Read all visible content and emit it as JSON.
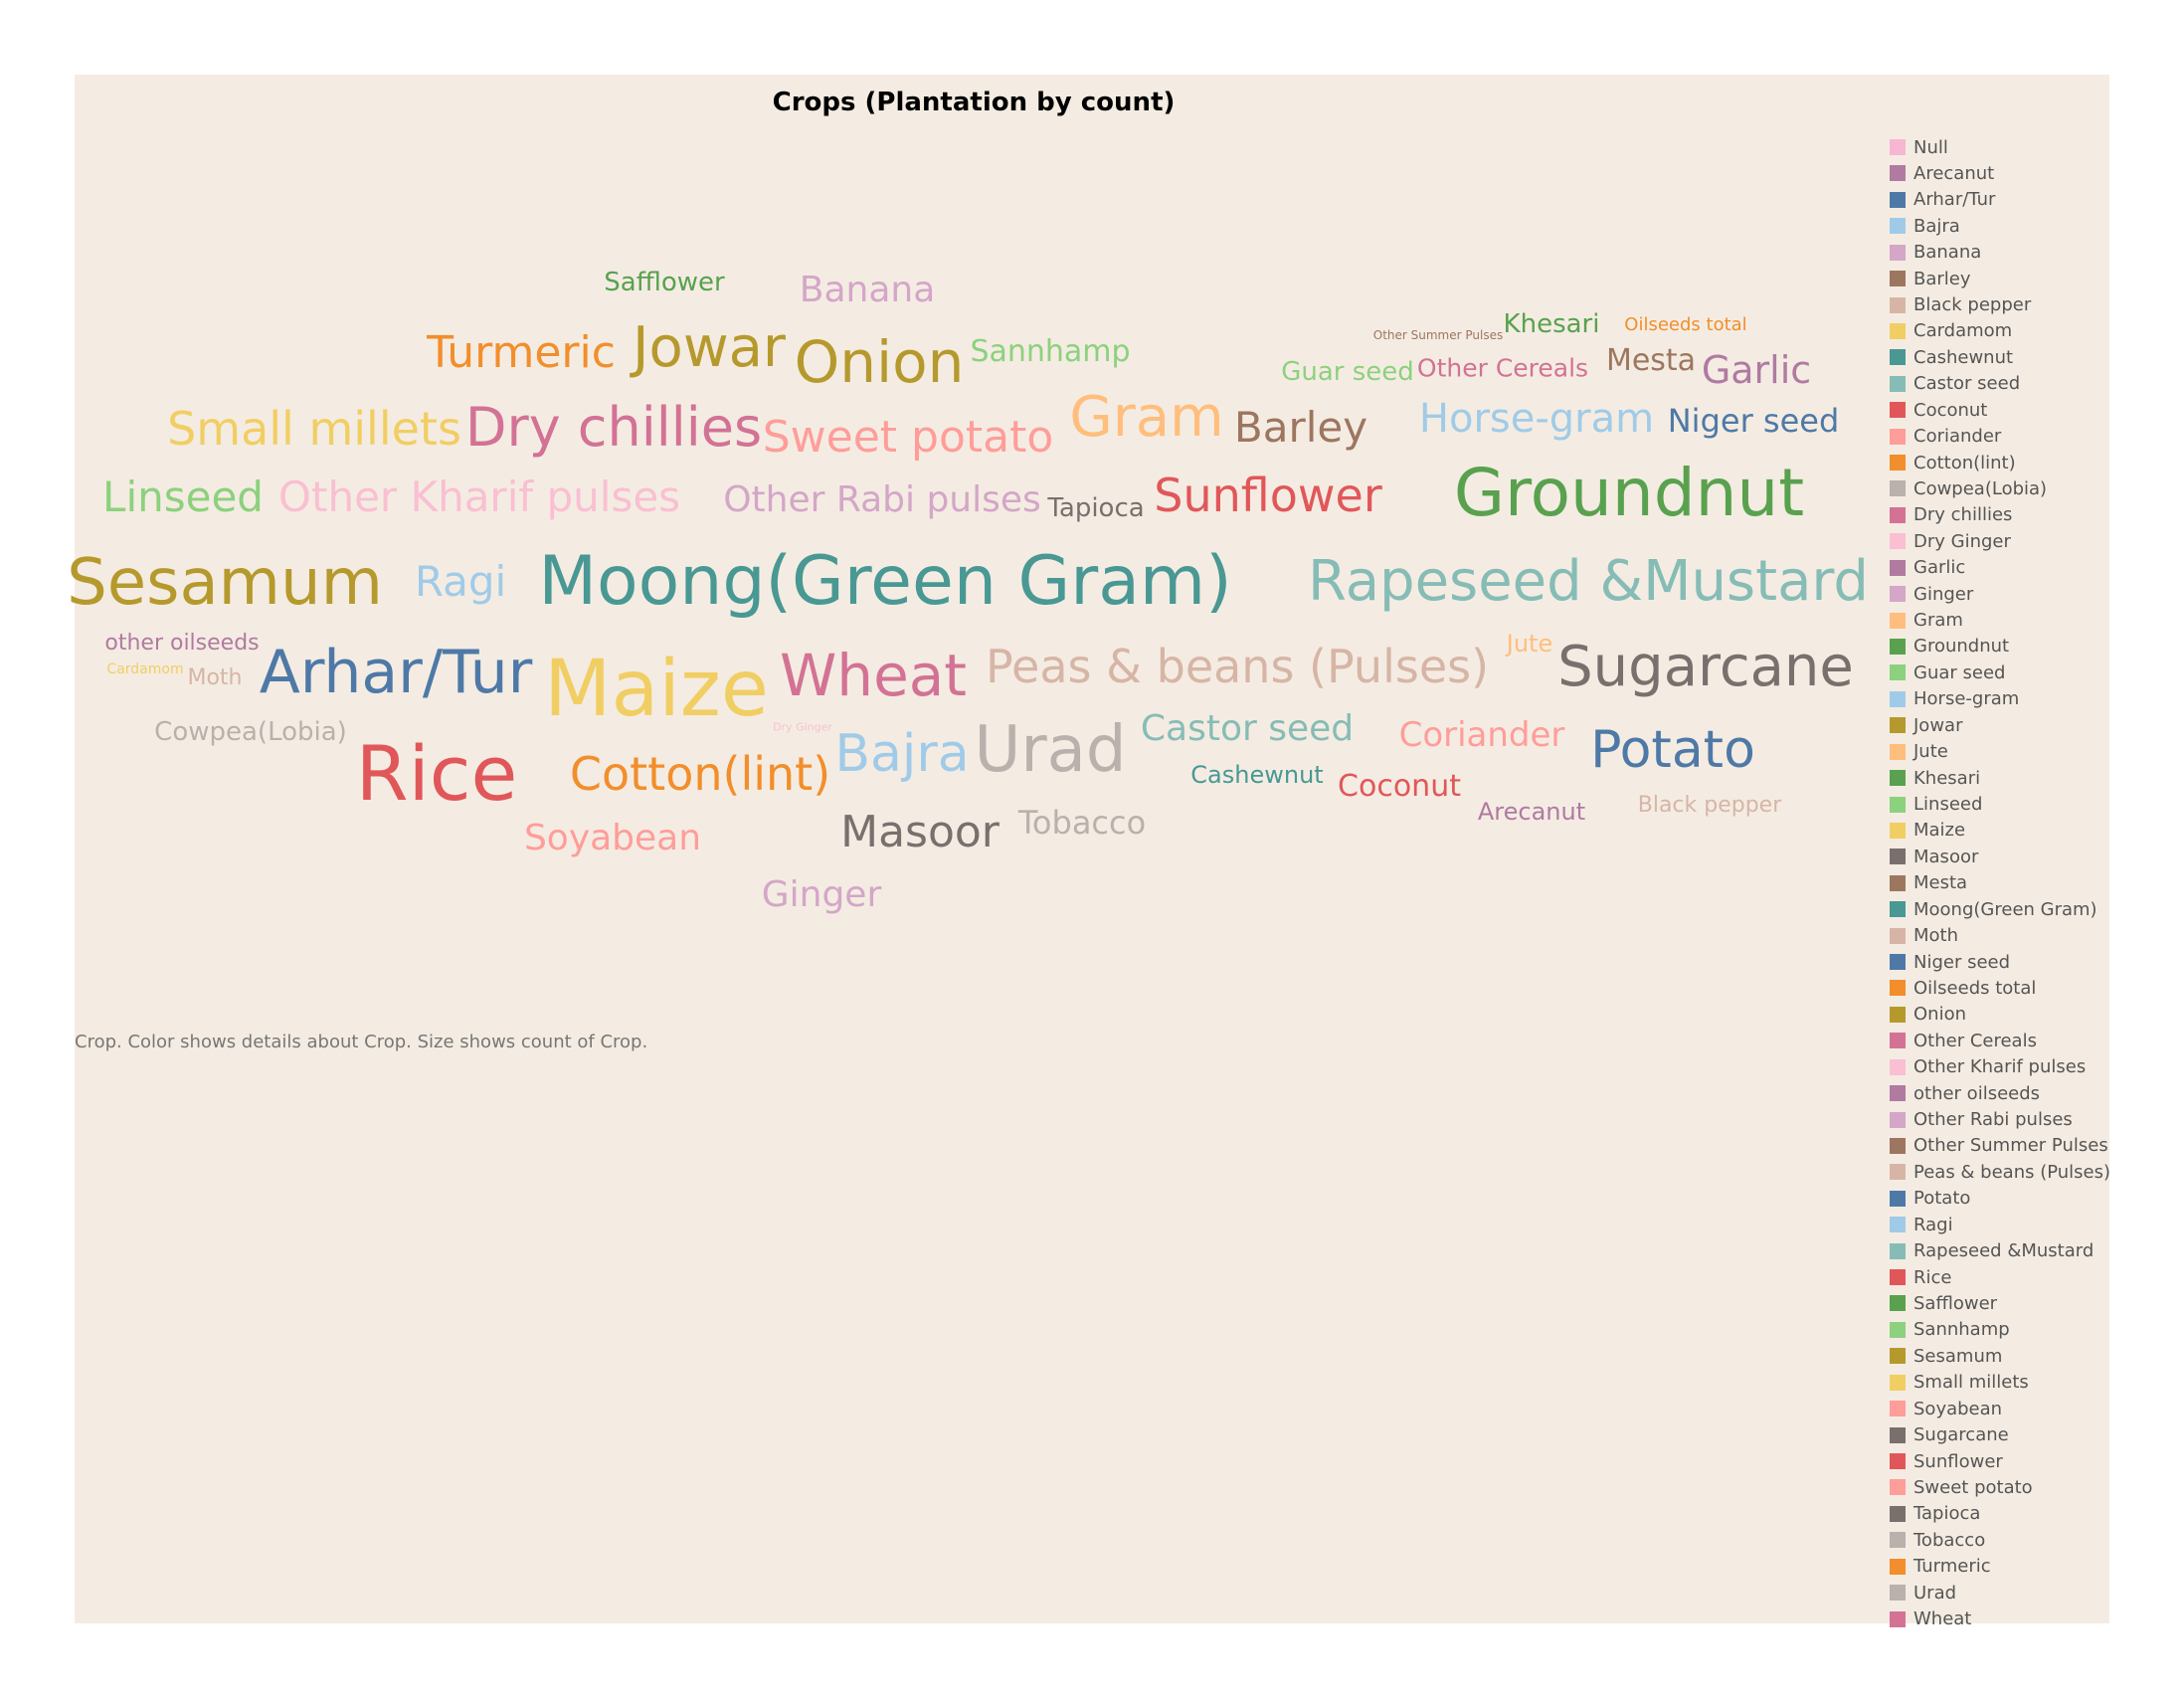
{
  "chart_data": {
    "type": "wordcloud",
    "title": "Crops (Plantation by count)",
    "caption": "Crop.  Color shows details about Crop.  Size shows count of Crop.",
    "legend_position": "right",
    "legend": [
      {
        "name": "Null",
        "color": "#f7b6d2"
      },
      {
        "name": "Arecanut",
        "color": "#b07aa1"
      },
      {
        "name": "Arhar/Tur",
        "color": "#4e79a7"
      },
      {
        "name": "Bajra",
        "color": "#a0cbe8"
      },
      {
        "name": "Banana",
        "color": "#d4a6c8"
      },
      {
        "name": "Barley",
        "color": "#9d7660"
      },
      {
        "name": "Black pepper",
        "color": "#d7b5a6"
      },
      {
        "name": "Cardamom",
        "color": "#f1ce63"
      },
      {
        "name": "Cashewnut",
        "color": "#499894"
      },
      {
        "name": "Castor seed",
        "color": "#86bcb6"
      },
      {
        "name": "Coconut",
        "color": "#e15759"
      },
      {
        "name": "Coriander",
        "color": "#ff9d9a"
      },
      {
        "name": "Cotton(lint)",
        "color": "#f28e2b"
      },
      {
        "name": "Cowpea(Lobia)",
        "color": "#bab0ac"
      },
      {
        "name": "Dry chillies",
        "color": "#d37295"
      },
      {
        "name": "Dry Ginger",
        "color": "#fabfd2"
      },
      {
        "name": "Garlic",
        "color": "#b07aa1"
      },
      {
        "name": "Ginger",
        "color": "#d4a6c8"
      },
      {
        "name": "Gram",
        "color": "#ffbe7d"
      },
      {
        "name": "Groundnut",
        "color": "#59a14f"
      },
      {
        "name": "Guar seed",
        "color": "#8cd17d"
      },
      {
        "name": "Horse-gram",
        "color": "#a0cbe8"
      },
      {
        "name": "Jowar",
        "color": "#b6992d"
      },
      {
        "name": "Jute",
        "color": "#ffbe7d"
      },
      {
        "name": "Khesari",
        "color": "#59a14f"
      },
      {
        "name": "Linseed",
        "color": "#8cd17d"
      },
      {
        "name": "Maize",
        "color": "#f1ce63"
      },
      {
        "name": "Masoor",
        "color": "#79706e"
      },
      {
        "name": "Mesta",
        "color": "#9d7660"
      },
      {
        "name": "Moong(Green Gram)",
        "color": "#499894"
      },
      {
        "name": "Moth",
        "color": "#d7b5a6"
      },
      {
        "name": "Niger seed",
        "color": "#4e79a7"
      },
      {
        "name": "Oilseeds total",
        "color": "#f28e2b"
      },
      {
        "name": "Onion",
        "color": "#b6992d"
      },
      {
        "name": "Other Cereals",
        "color": "#d37295"
      },
      {
        "name": "Other Kharif pulses",
        "color": "#fabfd2"
      },
      {
        "name": "other oilseeds",
        "color": "#b07aa1"
      },
      {
        "name": "Other Rabi pulses",
        "color": "#d4a6c8"
      },
      {
        "name": "Other Summer Pulses",
        "color": "#9d7660"
      },
      {
        "name": "Peas & beans (Pulses)",
        "color": "#d7b5a6"
      },
      {
        "name": "Potato",
        "color": "#4e79a7"
      },
      {
        "name": "Ragi",
        "color": "#a0cbe8"
      },
      {
        "name": "Rapeseed &Mustard",
        "color": "#86bcb6"
      },
      {
        "name": "Rice",
        "color": "#e15759"
      },
      {
        "name": "Safflower",
        "color": "#59a14f"
      },
      {
        "name": "Sannhamp",
        "color": "#8cd17d"
      },
      {
        "name": "Sesamum",
        "color": "#b6992d"
      },
      {
        "name": "Small millets",
        "color": "#f1ce63"
      },
      {
        "name": "Soyabean",
        "color": "#ff9d9a"
      },
      {
        "name": "Sugarcane",
        "color": "#79706e"
      },
      {
        "name": "Sunflower",
        "color": "#e15759"
      },
      {
        "name": "Sweet potato",
        "color": "#ff9d9a"
      },
      {
        "name": "Tapioca",
        "color": "#79706e"
      },
      {
        "name": "Tobacco",
        "color": "#bab0ac"
      },
      {
        "name": "Turmeric",
        "color": "#f28e2b"
      },
      {
        "name": "Urad",
        "color": "#bab0ac"
      },
      {
        "name": "Wheat",
        "color": "#d37295"
      }
    ],
    "words": [
      {
        "text": "Safflower",
        "color": "#59a14f"
      },
      {
        "text": "Banana",
        "color": "#d4a6c8"
      },
      {
        "text": "Turmeric",
        "color": "#f28e2b"
      },
      {
        "text": "Jowar",
        "color": "#b6992d"
      },
      {
        "text": "Onion",
        "color": "#b6992d"
      },
      {
        "text": "Sannhamp",
        "color": "#8cd17d"
      },
      {
        "text": "Other Summer Pulses",
        "color": "#9d7660"
      },
      {
        "text": "Khesari",
        "color": "#59a14f"
      },
      {
        "text": "Oilseeds total",
        "color": "#f28e2b"
      },
      {
        "text": "Guar seed",
        "color": "#8cd17d"
      },
      {
        "text": "Other Cereals",
        "color": "#d37295"
      },
      {
        "text": "Mesta",
        "color": "#9d7660"
      },
      {
        "text": "Garlic",
        "color": "#b07aa1"
      },
      {
        "text": "Small millets",
        "color": "#f1ce63"
      },
      {
        "text": "Dry chillies",
        "color": "#d37295"
      },
      {
        "text": "Sweet potato",
        "color": "#ff9d9a"
      },
      {
        "text": "Gram",
        "color": "#ffbe7d"
      },
      {
        "text": "Barley",
        "color": "#9d7660"
      },
      {
        "text": "Horse-gram",
        "color": "#a0cbe8"
      },
      {
        "text": "Niger seed",
        "color": "#4e79a7"
      },
      {
        "text": "Linseed",
        "color": "#8cd17d"
      },
      {
        "text": "Other Kharif pulses",
        "color": "#fabfd2"
      },
      {
        "text": "Other Rabi pulses",
        "color": "#d4a6c8"
      },
      {
        "text": "Tapioca",
        "color": "#79706e"
      },
      {
        "text": "Sunflower",
        "color": "#e15759"
      },
      {
        "text": "Groundnut",
        "color": "#59a14f"
      },
      {
        "text": "Sesamum",
        "color": "#b6992d"
      },
      {
        "text": "Ragi",
        "color": "#a0cbe8"
      },
      {
        "text": "Moong(Green Gram)",
        "color": "#499894"
      },
      {
        "text": "Rapeseed &Mustard",
        "color": "#86bcb6"
      },
      {
        "text": "other oilseeds",
        "color": "#b07aa1"
      },
      {
        "text": "Cardamom",
        "color": "#f1ce63"
      },
      {
        "text": "Moth",
        "color": "#d7b5a6"
      },
      {
        "text": "Arhar/Tur",
        "color": "#4e79a7"
      },
      {
        "text": "Maize",
        "color": "#f1ce63"
      },
      {
        "text": "Wheat",
        "color": "#d37295"
      },
      {
        "text": "Peas & beans (Pulses)",
        "color": "#d7b5a6"
      },
      {
        "text": "Jute",
        "color": "#ffbe7d"
      },
      {
        "text": "Sugarcane",
        "color": "#79706e"
      },
      {
        "text": "Cowpea(Lobia)",
        "color": "#bab0ac"
      },
      {
        "text": "Dry Ginger",
        "color": "#fabfd2"
      },
      {
        "text": "Bajra",
        "color": "#a0cbe8"
      },
      {
        "text": "Urad",
        "color": "#bab0ac"
      },
      {
        "text": "Castor seed",
        "color": "#86bcb6"
      },
      {
        "text": "Coriander",
        "color": "#ff9d9a"
      },
      {
        "text": "Potato",
        "color": "#4e79a7"
      },
      {
        "text": "Rice",
        "color": "#e15759"
      },
      {
        "text": "Cotton(lint)",
        "color": "#f28e2b"
      },
      {
        "text": "Cashewnut",
        "color": "#499894"
      },
      {
        "text": "Coconut",
        "color": "#e15759"
      },
      {
        "text": "Arecanut",
        "color": "#b07aa1"
      },
      {
        "text": "Black pepper",
        "color": "#d7b5a6"
      },
      {
        "text": "Soyabean",
        "color": "#ff9d9a"
      },
      {
        "text": "Masoor",
        "color": "#79706e"
      },
      {
        "text": "Tobacco",
        "color": "#bab0ac"
      },
      {
        "text": "Ginger",
        "color": "#d4a6c8"
      }
    ]
  }
}
